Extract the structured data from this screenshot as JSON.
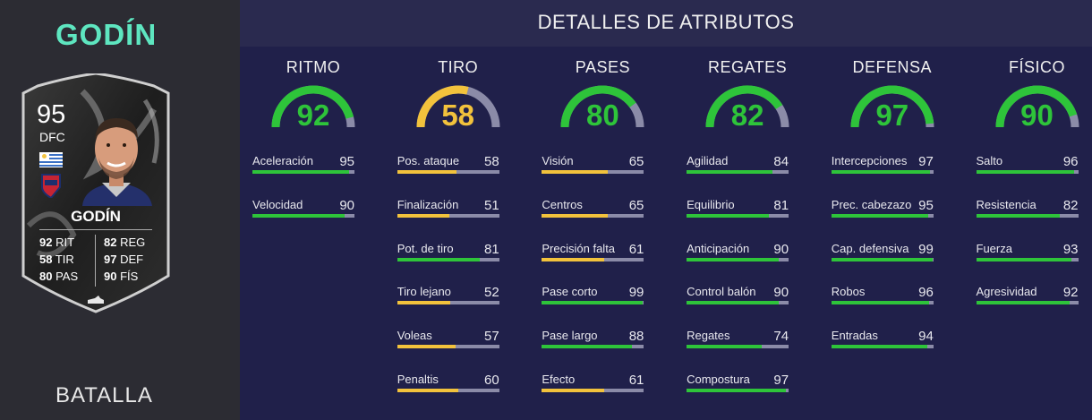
{
  "player": {
    "title": "GODÍN",
    "version": "BATALLA",
    "card": {
      "rating": "95",
      "position": "DFC",
      "name": "GODÍN",
      "stats": [
        {
          "value": "92",
          "label": "RIT"
        },
        {
          "value": "58",
          "label": "TIR"
        },
        {
          "value": "80",
          "label": "PAS"
        },
        {
          "value": "82",
          "label": "REG"
        },
        {
          "value": "97",
          "label": "DEF"
        },
        {
          "value": "90",
          "label": "FÍS"
        }
      ]
    }
  },
  "details": {
    "title": "DETALLES DE ATRIBUTOS",
    "colors": {
      "high": "#2ec43a",
      "mid": "#f2c23c",
      "track": "#8b8ba8"
    },
    "categories": [
      {
        "label": "RITMO",
        "value": 92,
        "attributes": [
          {
            "name": "Aceleración",
            "value": 95
          },
          {
            "name": "Velocidad",
            "value": 90
          }
        ]
      },
      {
        "label": "TIRO",
        "value": 58,
        "attributes": [
          {
            "name": "Pos. ataque",
            "value": 58
          },
          {
            "name": "Finalización",
            "value": 51
          },
          {
            "name": "Pot. de tiro",
            "value": 81
          },
          {
            "name": "Tiro lejano",
            "value": 52
          },
          {
            "name": "Voleas",
            "value": 57
          },
          {
            "name": "Penaltis",
            "value": 60
          }
        ]
      },
      {
        "label": "PASES",
        "value": 80,
        "attributes": [
          {
            "name": "Visión",
            "value": 65
          },
          {
            "name": "Centros",
            "value": 65
          },
          {
            "name": "Precisión falta",
            "value": 61
          },
          {
            "name": "Pase corto",
            "value": 99
          },
          {
            "name": "Pase largo",
            "value": 88
          },
          {
            "name": "Efecto",
            "value": 61
          }
        ]
      },
      {
        "label": "REGATES",
        "value": 82,
        "attributes": [
          {
            "name": "Agilidad",
            "value": 84
          },
          {
            "name": "Equilibrio",
            "value": 81
          },
          {
            "name": "Anticipación",
            "value": 90
          },
          {
            "name": "Control balón",
            "value": 90
          },
          {
            "name": "Regates",
            "value": 74
          },
          {
            "name": "Compostura",
            "value": 97
          }
        ]
      },
      {
        "label": "DEFENSA",
        "value": 97,
        "attributes": [
          {
            "name": "Intercepciones",
            "value": 97
          },
          {
            "name": "Prec. cabezazo",
            "value": 95
          },
          {
            "name": "Cap. defensiva",
            "value": 99
          },
          {
            "name": "Robos",
            "value": 96
          },
          {
            "name": "Entradas",
            "value": 94
          }
        ]
      },
      {
        "label": "FÍSICO",
        "value": 90,
        "attributes": [
          {
            "name": "Salto",
            "value": 96
          },
          {
            "name": "Resistencia",
            "value": 82
          },
          {
            "name": "Fuerza",
            "value": 93
          },
          {
            "name": "Agresividad",
            "value": 92
          }
        ]
      }
    ]
  }
}
